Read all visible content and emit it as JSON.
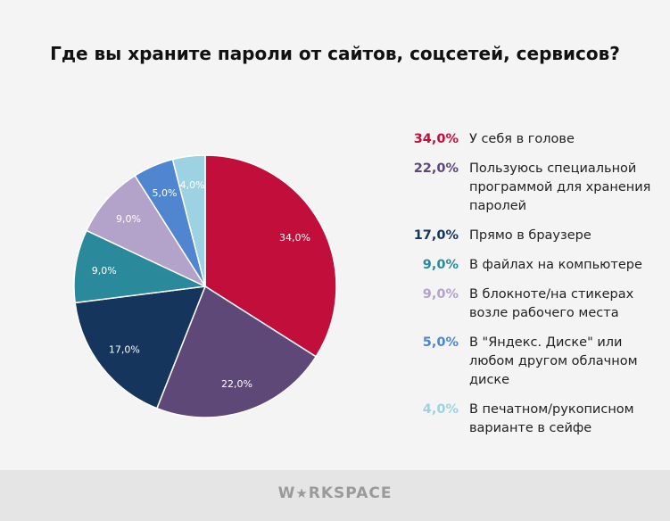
{
  "chart_data": {
    "type": "pie",
    "title": "Где вы храните пароли от сайтов, соцсетей, сервисов?",
    "legend_position": "right",
    "slices": [
      {
        "value": 34.0,
        "data_label": "34,0%",
        "legend_pct": "34,0%",
        "label": "У себя в голове",
        "color": "#c20e3a"
      },
      {
        "value": 22.0,
        "data_label": "22,0%",
        "legend_pct": "22,0%",
        "label": "Пользуюсь специальной программой для хранения паролей",
        "color": "#5d4878"
      },
      {
        "value": 17.0,
        "data_label": "17,0%",
        "legend_pct": "17,0%",
        "label": "Прямо в браузере",
        "color": "#16355c"
      },
      {
        "value": 9.0,
        "data_label": "9,0%",
        "legend_pct": "9,0%",
        "label": "В файлах на компьютере",
        "color": "#2a8a9b"
      },
      {
        "value": 9.0,
        "data_label": "9,0%",
        "legend_pct": "9,0%",
        "label": "В блокноте/на стикерах возле рабочего места",
        "color": "#b3a2c9"
      },
      {
        "value": 5.0,
        "data_label": "5,0%",
        "legend_pct": "5,0%",
        "label": "В \"Яндекс. Диске\" или любом другом облачном диске",
        "color": "#4f86cf"
      },
      {
        "value": 4.0,
        "data_label": "4,0%",
        "legend_pct": "4,0%",
        "label": "В печатном/рукописном варианте в сейфе",
        "color": "#9dd2e2"
      }
    ]
  },
  "footer": {
    "logo": "WORKSPACE"
  }
}
